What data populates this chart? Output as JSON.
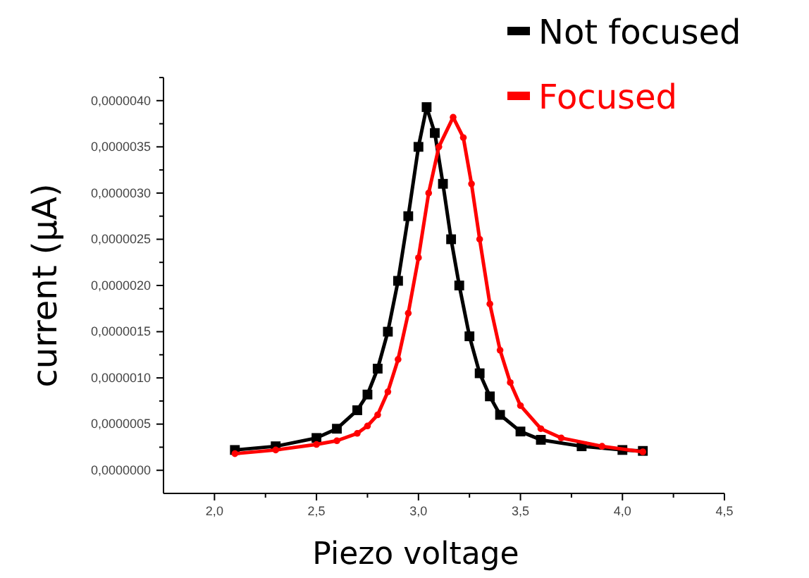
{
  "chart_data": {
    "type": "line",
    "xlabel": "Piezo voltage",
    "ylabel": "current (µA)",
    "xlim": [
      1.75,
      4.5
    ],
    "ylim": [
      -2.5e-07,
      4.25e-06
    ],
    "xticks": [
      {
        "value": 2.0,
        "label": "2,0"
      },
      {
        "value": 2.25,
        "label": null
      },
      {
        "value": 2.5,
        "label": "2,5"
      },
      {
        "value": 2.75,
        "label": null
      },
      {
        "value": 3.0,
        "label": "3,0"
      },
      {
        "value": 3.25,
        "label": null
      },
      {
        "value": 3.5,
        "label": "3,5"
      },
      {
        "value": 3.75,
        "label": null
      },
      {
        "value": 4.0,
        "label": "4,0"
      },
      {
        "value": 4.25,
        "label": null
      },
      {
        "value": 4.5,
        "label": "4,5"
      }
    ],
    "yticks": [
      {
        "value": 0,
        "label": "0,0000000"
      },
      {
        "value": 2.5e-07,
        "label": null
      },
      {
        "value": 5e-07,
        "label": "0,0000005"
      },
      {
        "value": 7.5e-07,
        "label": null
      },
      {
        "value": 1e-06,
        "label": "0,0000010"
      },
      {
        "value": 1.25e-06,
        "label": null
      },
      {
        "value": 1.5e-06,
        "label": "0,0000015"
      },
      {
        "value": 1.75e-06,
        "label": null
      },
      {
        "value": 2e-06,
        "label": "0,0000020"
      },
      {
        "value": 2.25e-06,
        "label": null
      },
      {
        "value": 2.5e-06,
        "label": "0,0000025"
      },
      {
        "value": 2.75e-06,
        "label": null
      },
      {
        "value": 3e-06,
        "label": "0,0000030"
      },
      {
        "value": 3.25e-06,
        "label": null
      },
      {
        "value": 3.5e-06,
        "label": "0,0000035"
      },
      {
        "value": 3.75e-06,
        "label": null
      },
      {
        "value": 4e-06,
        "label": "0,0000040"
      },
      {
        "value": 4.25e-06,
        "label": null
      }
    ],
    "grid": false,
    "legend": "top right",
    "line_style": "solid",
    "series": [
      {
        "name": "Not focused",
        "color": "#000000",
        "marker": "square",
        "x": [
          2.1,
          2.3,
          2.5,
          2.6,
          2.7,
          2.75,
          2.8,
          2.85,
          2.9,
          2.95,
          3.0,
          3.04,
          3.08,
          3.12,
          3.16,
          3.2,
          3.25,
          3.3,
          3.35,
          3.4,
          3.5,
          3.6,
          3.8,
          4.0,
          4.1
        ],
        "values": [
          2.2e-07,
          2.6e-07,
          3.5e-07,
          4.5e-07,
          6.5e-07,
          8.2e-07,
          1.1e-06,
          1.5e-06,
          2.05e-06,
          2.75e-06,
          3.5e-06,
          3.93e-06,
          3.65e-06,
          3.1e-06,
          2.5e-06,
          2e-06,
          1.45e-06,
          1.05e-06,
          8e-07,
          6e-07,
          4.2e-07,
          3.3e-07,
          2.6e-07,
          2.2e-07,
          2.1e-07
        ]
      },
      {
        "name": "Focused",
        "color": "#ff0000",
        "marker": "circle",
        "x": [
          2.1,
          2.3,
          2.5,
          2.6,
          2.7,
          2.75,
          2.8,
          2.85,
          2.9,
          2.95,
          3.0,
          3.05,
          3.1,
          3.17,
          3.22,
          3.26,
          3.3,
          3.35,
          3.4,
          3.45,
          3.5,
          3.6,
          3.7,
          3.9,
          4.1
        ],
        "values": [
          1.8e-07,
          2.2e-07,
          2.8e-07,
          3.2e-07,
          4e-07,
          4.8e-07,
          6e-07,
          8.5e-07,
          1.2e-06,
          1.7e-06,
          2.3e-06,
          3e-06,
          3.5e-06,
          3.82e-06,
          3.6e-06,
          3.1e-06,
          2.5e-06,
          1.8e-06,
          1.3e-06,
          9.5e-07,
          7e-07,
          4.5e-07,
          3.5e-07,
          2.6e-07,
          2e-07
        ]
      }
    ]
  }
}
